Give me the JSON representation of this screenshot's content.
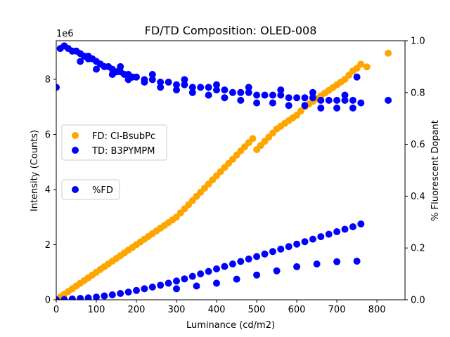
{
  "chart_data": {
    "type": "scatter",
    "title": "FD/TD Composition: OLED-008",
    "xlabel": "Luminance (cd/m2)",
    "ylabel": "Intensity (Counts)",
    "y2label": "% Fluorescent Dopant",
    "y_offset_label": "1e6",
    "xlim": [
      0,
      870
    ],
    "ylim": [
      0,
      9400000
    ],
    "y2lim": [
      0,
      1.0
    ],
    "xticks": [
      0,
      100,
      200,
      300,
      400,
      500,
      600,
      700,
      800
    ],
    "yticks": [
      0,
      2,
      4,
      6,
      8
    ],
    "y2ticks": [
      "0.0",
      "0.2",
      "0.4",
      "0.6",
      "0.8",
      "1.0"
    ],
    "grid": false,
    "legend_upper": {
      "placement": "left-middle",
      "entries": [
        "FD: Cl-BsubPc",
        "TD: B3PYMPM"
      ]
    },
    "legend_lower": {
      "placement": "left-middle",
      "entries": [
        "%FD"
      ]
    },
    "series": [
      {
        "name": "FD: Cl-BsubPc",
        "axis": "left",
        "color": "#ffa500",
        "points": [
          [
            0,
            0
          ],
          [
            10,
            100000
          ],
          [
            20,
            200000
          ],
          [
            30,
            300000
          ],
          [
            40,
            400000
          ],
          [
            50,
            500000
          ],
          [
            60,
            600000
          ],
          [
            70,
            700000
          ],
          [
            80,
            800000
          ],
          [
            90,
            900000
          ],
          [
            100,
            1000000
          ],
          [
            110,
            1100000
          ],
          [
            120,
            1200000
          ],
          [
            130,
            1300000
          ],
          [
            140,
            1400000
          ],
          [
            150,
            1500000
          ],
          [
            160,
            1600000
          ],
          [
            170,
            1700000
          ],
          [
            180,
            1800000
          ],
          [
            190,
            1900000
          ],
          [
            200,
            2000000
          ],
          [
            210,
            2100000
          ],
          [
            220,
            2200000
          ],
          [
            230,
            2300000
          ],
          [
            240,
            2400000
          ],
          [
            250,
            2500000
          ],
          [
            260,
            2600000
          ],
          [
            270,
            2700000
          ],
          [
            280,
            2800000
          ],
          [
            290,
            2900000
          ],
          [
            300,
            3000000
          ],
          [
            310,
            3150000
          ],
          [
            320,
            3300000
          ],
          [
            330,
            3450000
          ],
          [
            340,
            3600000
          ],
          [
            350,
            3750000
          ],
          [
            360,
            3900000
          ],
          [
            370,
            4050000
          ],
          [
            380,
            4200000
          ],
          [
            390,
            4350000
          ],
          [
            400,
            4500000
          ],
          [
            410,
            4650000
          ],
          [
            420,
            4800000
          ],
          [
            430,
            4950000
          ],
          [
            440,
            5100000
          ],
          [
            450,
            5250000
          ],
          [
            460,
            5400000
          ],
          [
            470,
            5550000
          ],
          [
            480,
            5700000
          ],
          [
            490,
            5850000
          ],
          [
            500,
            5450000
          ],
          [
            510,
            5600000
          ],
          [
            520,
            5750000
          ],
          [
            530,
            5900000
          ],
          [
            540,
            6050000
          ],
          [
            550,
            6200000
          ],
          [
            560,
            6300000
          ],
          [
            570,
            6400000
          ],
          [
            580,
            6500000
          ],
          [
            590,
            6600000
          ],
          [
            600,
            6700000
          ],
          [
            610,
            6850000
          ],
          [
            620,
            7000000
          ],
          [
            630,
            7100000
          ],
          [
            640,
            7200000
          ],
          [
            650,
            7300000
          ],
          [
            660,
            7400000
          ],
          [
            670,
            7500000
          ],
          [
            680,
            7600000
          ],
          [
            690,
            7700000
          ],
          [
            700,
            7800000
          ],
          [
            710,
            7900000
          ],
          [
            720,
            8000000
          ],
          [
            730,
            8150000
          ],
          [
            740,
            8300000
          ],
          [
            750,
            8400000
          ],
          [
            760,
            8550000
          ],
          [
            775,
            8450000
          ],
          [
            828,
            8950000
          ]
        ]
      },
      {
        "name": "TD: B3PYMPM",
        "axis": "left",
        "color": "#0000ff",
        "points": [
          [
            0,
            0
          ],
          [
            20,
            10000
          ],
          [
            40,
            30000
          ],
          [
            60,
            50000
          ],
          [
            80,
            70000
          ],
          [
            100,
            100000
          ],
          [
            120,
            140000
          ],
          [
            140,
            180000
          ],
          [
            160,
            230000
          ],
          [
            180,
            280000
          ],
          [
            200,
            340000
          ],
          [
            220,
            400000
          ],
          [
            240,
            460000
          ],
          [
            260,
            530000
          ],
          [
            280,
            600000
          ],
          [
            300,
            680000
          ],
          [
            320,
            760000
          ],
          [
            340,
            850000
          ],
          [
            360,
            940000
          ],
          [
            380,
            1030000
          ],
          [
            400,
            1120000
          ],
          [
            420,
            1210000
          ],
          [
            440,
            1300000
          ],
          [
            460,
            1390000
          ],
          [
            480,
            1480000
          ],
          [
            500,
            1570000
          ],
          [
            520,
            1660000
          ],
          [
            540,
            1750000
          ],
          [
            560,
            1840000
          ],
          [
            580,
            1930000
          ],
          [
            600,
            2020000
          ],
          [
            620,
            2110000
          ],
          [
            640,
            2200000
          ],
          [
            660,
            2290000
          ],
          [
            680,
            2380000
          ],
          [
            700,
            2470000
          ],
          [
            720,
            2560000
          ],
          [
            740,
            2650000
          ],
          [
            760,
            2750000
          ],
          [
            300,
            400000
          ],
          [
            350,
            500000
          ],
          [
            400,
            600000
          ],
          [
            450,
            750000
          ],
          [
            500,
            900000
          ],
          [
            550,
            1050000
          ],
          [
            600,
            1200000
          ],
          [
            650,
            1300000
          ],
          [
            700,
            1380000
          ],
          [
            750,
            1400000
          ]
        ]
      },
      {
        "name": "%FD",
        "axis": "right",
        "color": "#0000ff",
        "points": [
          [
            0,
            0.82
          ],
          [
            10,
            0.97
          ],
          [
            20,
            0.98
          ],
          [
            30,
            0.97
          ],
          [
            40,
            0.96
          ],
          [
            50,
            0.96
          ],
          [
            60,
            0.95
          ],
          [
            70,
            0.94
          ],
          [
            80,
            0.93
          ],
          [
            90,
            0.93
          ],
          [
            100,
            0.92
          ],
          [
            110,
            0.91
          ],
          [
            120,
            0.9
          ],
          [
            130,
            0.9
          ],
          [
            140,
            0.89
          ],
          [
            150,
            0.88
          ],
          [
            160,
            0.88
          ],
          [
            170,
            0.87
          ],
          [
            180,
            0.87
          ],
          [
            190,
            0.86
          ],
          [
            200,
            0.86
          ],
          [
            220,
            0.85
          ],
          [
            240,
            0.85
          ],
          [
            260,
            0.84
          ],
          [
            280,
            0.84
          ],
          [
            300,
            0.83
          ],
          [
            320,
            0.83
          ],
          [
            340,
            0.82
          ],
          [
            360,
            0.82
          ],
          [
            380,
            0.82
          ],
          [
            400,
            0.81
          ],
          [
            420,
            0.81
          ],
          [
            440,
            0.8
          ],
          [
            460,
            0.8
          ],
          [
            480,
            0.8
          ],
          [
            500,
            0.79
          ],
          [
            520,
            0.79
          ],
          [
            540,
            0.79
          ],
          [
            560,
            0.79
          ],
          [
            580,
            0.78
          ],
          [
            600,
            0.78
          ],
          [
            620,
            0.78
          ],
          [
            640,
            0.78
          ],
          [
            660,
            0.77
          ],
          [
            680,
            0.77
          ],
          [
            700,
            0.77
          ],
          [
            720,
            0.77
          ],
          [
            740,
            0.77
          ],
          [
            760,
            0.76
          ],
          [
            828,
            0.77
          ],
          [
            60,
            0.92
          ],
          [
            100,
            0.89
          ],
          [
            140,
            0.87
          ],
          [
            180,
            0.85
          ],
          [
            220,
            0.84
          ],
          [
            260,
            0.82
          ],
          [
            300,
            0.81
          ],
          [
            340,
            0.8
          ],
          [
            380,
            0.79
          ],
          [
            420,
            0.78
          ],
          [
            460,
            0.77
          ],
          [
            500,
            0.76
          ],
          [
            540,
            0.76
          ],
          [
            580,
            0.75
          ],
          [
            620,
            0.75
          ],
          [
            660,
            0.74
          ],
          [
            700,
            0.74
          ],
          [
            740,
            0.74
          ],
          [
            80,
            0.94
          ],
          [
            160,
            0.9
          ],
          [
            240,
            0.87
          ],
          [
            320,
            0.85
          ],
          [
            400,
            0.83
          ],
          [
            480,
            0.82
          ],
          [
            560,
            0.81
          ],
          [
            640,
            0.8
          ],
          [
            720,
            0.79
          ],
          [
            750,
            0.86
          ]
        ]
      }
    ]
  }
}
